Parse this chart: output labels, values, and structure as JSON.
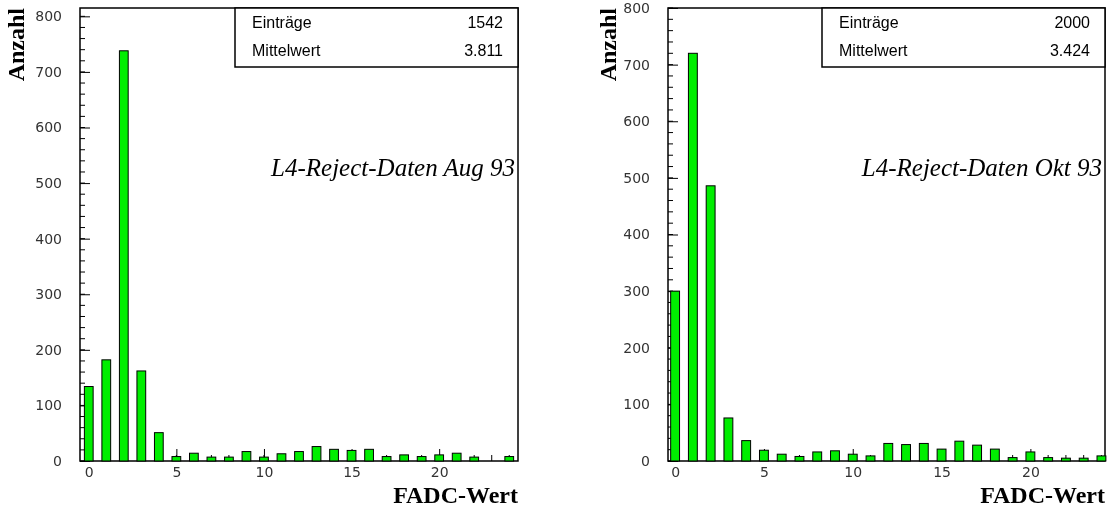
{
  "chart_data": [
    {
      "type": "bar",
      "ylabel": "Anzahl",
      "xlabel": "FADC-Wert",
      "x": [
        0,
        1,
        2,
        3,
        4,
        5,
        6,
        7,
        8,
        9,
        10,
        11,
        12,
        13,
        14,
        15,
        16,
        17,
        18,
        19,
        20,
        21,
        22,
        23,
        24
      ],
      "values": [
        134,
        182,
        738,
        162,
        51,
        8,
        14,
        7,
        7,
        17,
        7,
        13,
        17,
        26,
        21,
        19,
        21,
        8,
        11,
        8,
        11,
        14,
        7,
        0,
        8
      ],
      "color": "#00ee00",
      "xlim": [
        -0.5,
        24.5
      ],
      "xticks": [
        0,
        5,
        10,
        15,
        20
      ],
      "ylim": [
        0,
        815
      ],
      "yticks": [
        0,
        100,
        200,
        300,
        400,
        500,
        600,
        700,
        800
      ],
      "annotations": [
        "Einträge",
        "1542",
        "Mittelwert",
        "3.811",
        "L4-Reject-Daten Aug 93"
      ]
    },
    {
      "type": "bar",
      "ylabel": "Anzahl",
      "xlabel": "FADC-Wert",
      "x": [
        0,
        1,
        2,
        3,
        4,
        5,
        6,
        7,
        8,
        9,
        10,
        11,
        12,
        13,
        14,
        15,
        16,
        17,
        18,
        19,
        20,
        21,
        22,
        23,
        24
      ],
      "values": [
        300,
        720,
        486,
        76,
        36,
        19,
        12,
        8,
        16,
        18,
        12,
        9,
        31,
        29,
        31,
        21,
        35,
        28,
        21,
        6,
        16,
        6,
        5,
        5,
        9
      ],
      "color": "#00ee00",
      "xlim": [
        -0.4,
        24.2
      ],
      "xticks": [
        0,
        5,
        10,
        15,
        20
      ],
      "ylim": [
        0,
        800
      ],
      "yticks": [
        0,
        100,
        200,
        300,
        400,
        500,
        600,
        700,
        800
      ],
      "annotations": [
        "Einträge",
        "2000",
        "Mittelwert",
        "3.424",
        "L4-Reject-Daten Okt 93"
      ]
    }
  ]
}
